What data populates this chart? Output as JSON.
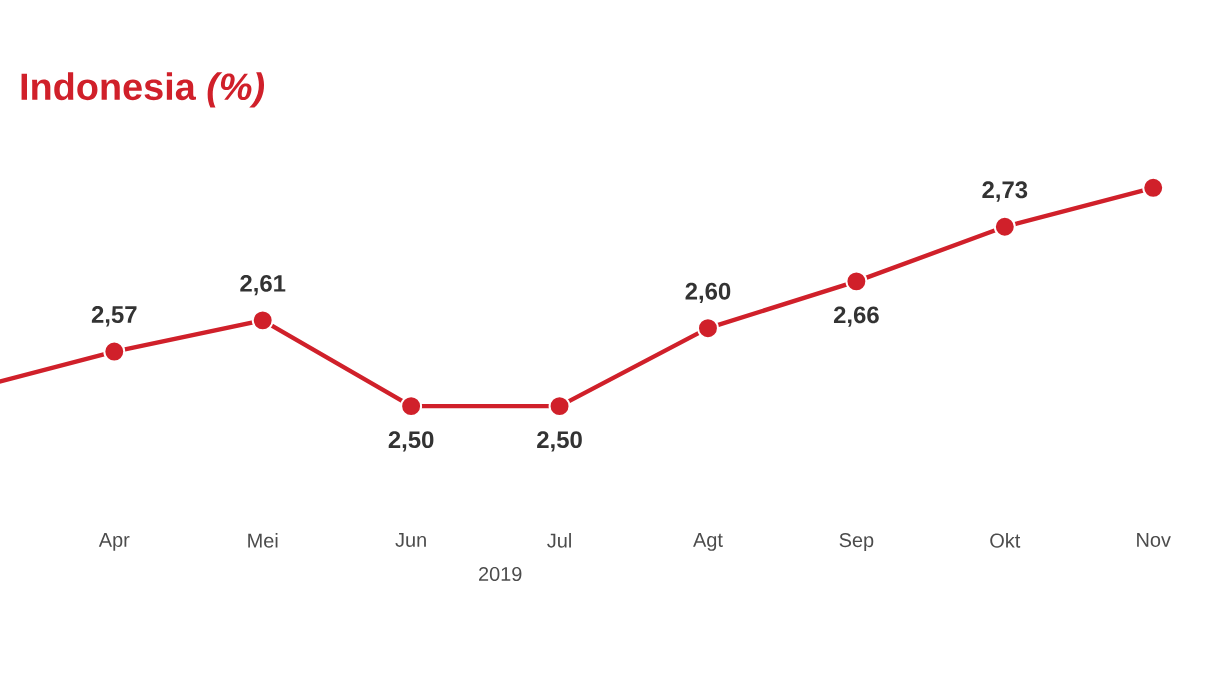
{
  "chart_data": {
    "type": "line",
    "title": "Indonesia *(%)*",
    "categories": [
      null,
      "Apr",
      "Mei",
      "Jun",
      "Jul",
      "Agt",
      "Sep",
      "Okt",
      "Nov"
    ],
    "series": [
      {
        "color": "#d0202a",
        "values": [
          2.52,
          2.57,
          2.61,
          2.5,
          2.5,
          2.6,
          2.66,
          2.73,
          2.78
        ],
        "value_labels": [
          null,
          "2,57",
          "2,61",
          "2,50",
          "2,50",
          "2,60",
          "2,66",
          "2,73",
          null
        ]
      }
    ],
    "marker": "circle",
    "line_style": "solid",
    "annotations": [
      "2019"
    ]
  }
}
